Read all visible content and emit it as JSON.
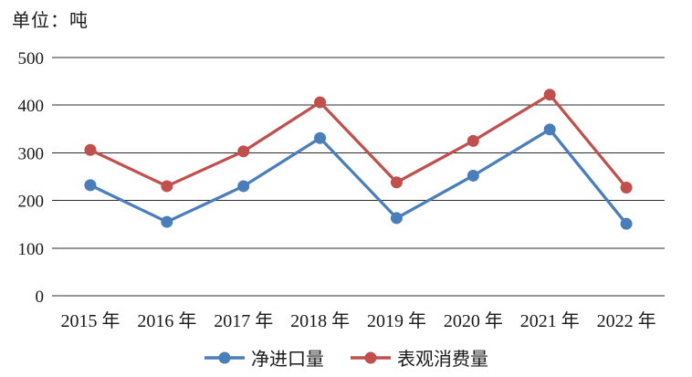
{
  "chart_data": {
    "type": "line",
    "unit_label": "单位：吨",
    "categories": [
      "2015 年",
      "2016 年",
      "2017 年",
      "2018 年",
      "2019 年",
      "2020 年",
      "2021 年",
      "2022 年"
    ],
    "series": [
      {
        "name": "净进口量",
        "color": "#4a7ebb",
        "values": [
          232,
          155,
          230,
          331,
          163,
          252,
          349,
          151
        ]
      },
      {
        "name": "表观消费量",
        "color": "#c0504d",
        "values": [
          306,
          230,
          303,
          406,
          238,
          325,
          422,
          227
        ]
      }
    ],
    "ylim": [
      0,
      500
    ],
    "yticks": [
      0,
      100,
      200,
      300,
      400,
      500
    ],
    "grid": true,
    "legend_position": "bottom",
    "text_color": "#1a1a1a",
    "gridline_color": "#2b2b2b"
  }
}
